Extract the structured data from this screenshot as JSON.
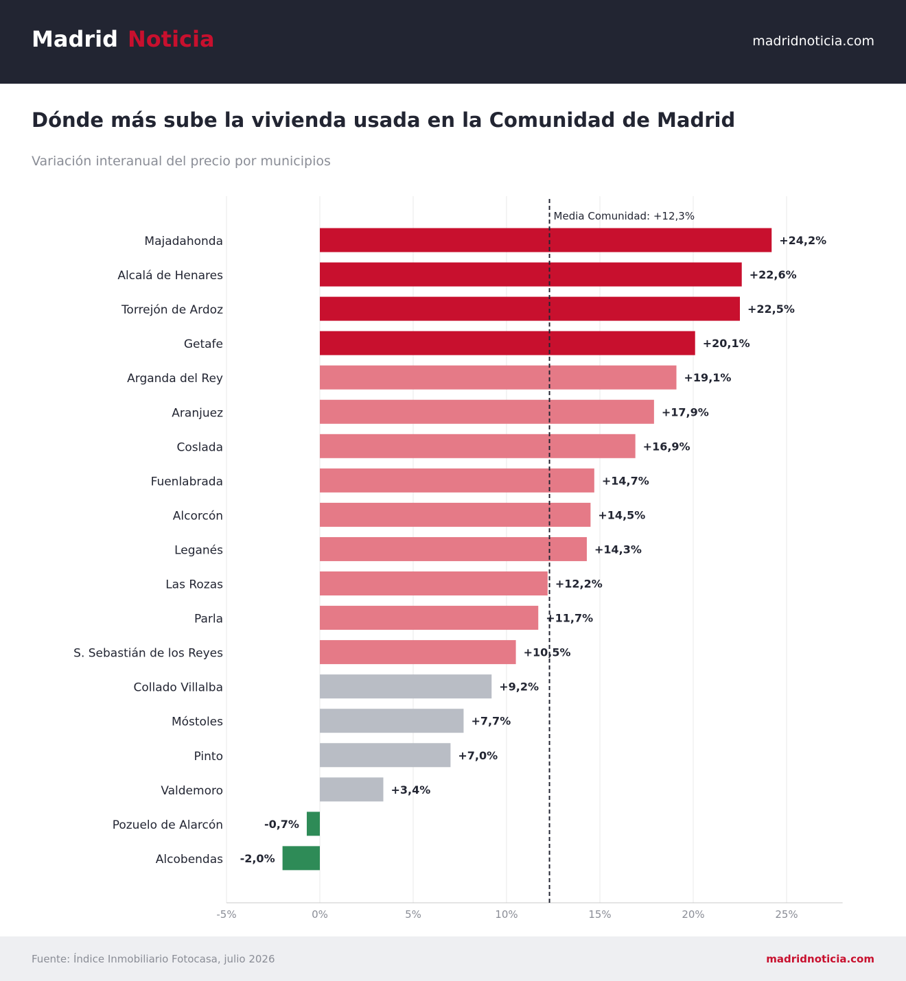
{
  "header": {
    "brand_part1": "Madrid",
    "brand_part2": "Noticia",
    "site": "madridnoticia.com"
  },
  "title": "Dónde más sube la vivienda usada en la Comunidad de Madrid",
  "subtitle": "Variación interanual del precio por municipios",
  "chart_data": {
    "type": "bar",
    "orientation": "horizontal",
    "categories": [
      "Majadahonda",
      "Alcalá de Henares",
      "Torrejón de Ardoz",
      "Getafe",
      "Arganda del Rey",
      "Aranjuez",
      "Coslada",
      "Fuenlabrada",
      "Alcorcón",
      "Leganés",
      "Las Rozas",
      "Parla",
      "S. Sebastián de los Reyes",
      "Collado Villalba",
      "Móstoles",
      "Pinto",
      "Valdemoro",
      "Pozuelo de Alarcón",
      "Alcobendas"
    ],
    "values": [
      24.2,
      22.6,
      22.5,
      20.1,
      19.1,
      17.9,
      16.9,
      14.7,
      14.5,
      14.3,
      12.2,
      11.7,
      10.5,
      9.2,
      7.7,
      7.0,
      3.4,
      -0.7,
      -2.0
    ],
    "value_labels": [
      "+24,2%",
      "+22,6%",
      "+22,5%",
      "+20,1%",
      "+19,1%",
      "+17,9%",
      "+16,9%",
      "+14,7%",
      "+14,5%",
      "+14,3%",
      "+12,2%",
      "+11,7%",
      "+10,5%",
      "+9,2%",
      "+7,7%",
      "+7,0%",
      "+3,4%",
      "-0,7%",
      "-2,0%"
    ],
    "xlim": [
      -5,
      28
    ],
    "xticks": [
      -5,
      0,
      5,
      10,
      15,
      20,
      25
    ],
    "xtick_labels": [
      "-5%",
      "0%",
      "5%",
      "10%",
      "15%",
      "20%",
      "25%"
    ],
    "grid": true,
    "reference_line": {
      "value": 12.3,
      "label": "Media Comunidad: +12,3%"
    },
    "colors": {
      "top": "#c8102e",
      "above_average": "#e57a87",
      "below_average": "#b9bdc5",
      "negative": "#2e8b57",
      "reference_line": "#222532",
      "grid": "#e8e8e8",
      "axis": "#c8c8c8",
      "label": "#222532",
      "tick": "#8a8d96"
    }
  },
  "footer": {
    "source": "Fuente: Índice Inmobiliario Fotocasa, julio 2026",
    "site": "madridnoticia.com"
  }
}
